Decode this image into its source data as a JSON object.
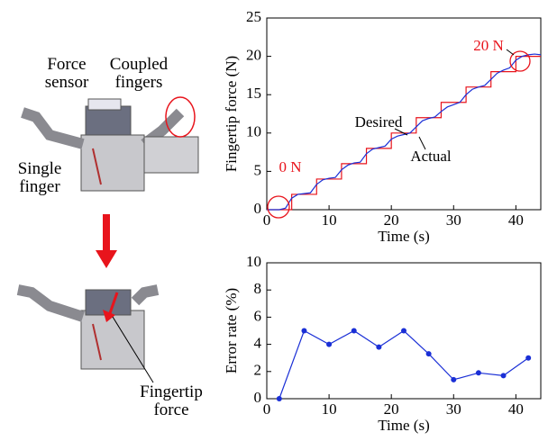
{
  "labels": {
    "force_sensor": "Force sensor",
    "coupled_fingers": "Coupled fingers",
    "single_finger": "Single finger",
    "fingertip_force": "Fingertip force"
  },
  "chart_data": [
    {
      "type": "line",
      "xlabel": "Time (s)",
      "ylabel": "Fingertip force (N)",
      "xlim": [
        0,
        44
      ],
      "xticks": [
        0,
        10,
        20,
        30,
        40
      ],
      "ylim": [
        0,
        25
      ],
      "yticks": [
        0,
        5,
        10,
        15,
        20,
        25
      ],
      "annotations": [
        "0 N",
        "20 N",
        "Desired",
        "Actual"
      ],
      "series": [
        {
          "name": "Desired",
          "color": "#e8141c",
          "x": [
            0,
            4,
            4,
            8,
            8,
            12,
            12,
            16,
            16,
            20,
            20,
            24,
            24,
            28,
            28,
            32,
            32,
            36,
            36,
            40,
            40,
            44
          ],
          "values": [
            0,
            0,
            2,
            2,
            4,
            4,
            6,
            6,
            8,
            8,
            10,
            10,
            12,
            12,
            14,
            14,
            16,
            16,
            18,
            18,
            20,
            20
          ]
        },
        {
          "name": "Actual",
          "color": "#1a2fd6",
          "x": [
            0,
            1,
            2,
            3,
            4,
            5,
            6,
            7,
            8,
            9,
            10,
            11,
            12,
            13,
            14,
            15,
            16,
            17,
            18,
            19,
            20,
            21,
            22,
            23,
            24,
            25,
            26,
            27,
            28,
            29,
            30,
            31,
            32,
            33,
            34,
            35,
            36,
            37,
            38,
            39,
            40,
            41,
            42,
            43,
            44
          ],
          "values": [
            0,
            0,
            0,
            0.2,
            1.5,
            2.0,
            2.1,
            2.2,
            3.3,
            3.9,
            4.1,
            4.2,
            5.2,
            5.8,
            6.1,
            6.2,
            7.3,
            7.9,
            8.1,
            8.3,
            9.2,
            9.6,
            9.8,
            10.0,
            10.8,
            11.6,
            11.9,
            12.1,
            12.8,
            13.4,
            13.7,
            14.0,
            15.0,
            15.7,
            16.0,
            16.2,
            17.0,
            17.8,
            18.2,
            18.5,
            19.5,
            20.0,
            20.2,
            20.3,
            20.2
          ]
        }
      ]
    },
    {
      "type": "line",
      "xlabel": "Time (s)",
      "ylabel": "Error rate (%)",
      "xlim": [
        0,
        44
      ],
      "xticks": [
        0,
        10,
        20,
        30,
        40
      ],
      "ylim": [
        0,
        10
      ],
      "yticks": [
        0,
        2,
        4,
        6,
        8,
        10
      ],
      "series": [
        {
          "color": "#1a2fd6",
          "markers": true,
          "x": [
            2,
            6,
            10,
            14,
            18,
            22,
            26,
            30,
            34,
            38,
            42
          ],
          "values": [
            0,
            5,
            4,
            5,
            3.8,
            5,
            3.3,
            1.4,
            1.9,
            1.7,
            3
          ]
        }
      ]
    }
  ]
}
